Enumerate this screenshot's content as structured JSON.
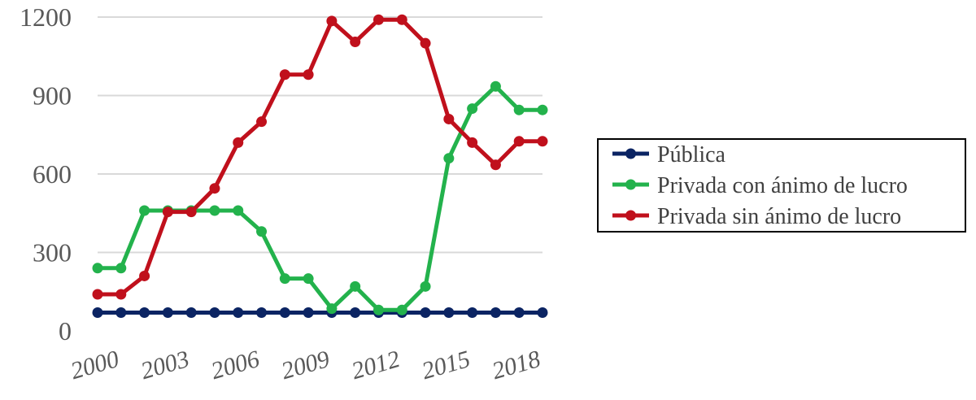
{
  "chart_data": {
    "type": "line",
    "x": [
      2000,
      2001,
      2002,
      2003,
      2004,
      2005,
      2006,
      2007,
      2008,
      2009,
      2010,
      2011,
      2012,
      2013,
      2014,
      2015,
      2016,
      2017,
      2018,
      2019
    ],
    "x_tick_labels": [
      "2000",
      "2003",
      "2006",
      "2009",
      "2012",
      "2015",
      "2018"
    ],
    "y_ticks": [
      0,
      300,
      600,
      900,
      1200
    ],
    "ylim": [
      0,
      1200
    ],
    "grid": "horizontal",
    "legend_position": "right",
    "series": [
      {
        "name": "Pública",
        "color": "#0b2463",
        "values": [
          70,
          70,
          70,
          70,
          70,
          70,
          70,
          70,
          70,
          70,
          70,
          70,
          70,
          70,
          70,
          70,
          70,
          70,
          70,
          70
        ]
      },
      {
        "name": "Privada con ánimo de lucro",
        "color": "#23b24c",
        "values": [
          240,
          240,
          460,
          460,
          460,
          460,
          460,
          380,
          200,
          200,
          85,
          170,
          80,
          80,
          170,
          660,
          850,
          935,
          845,
          845
        ]
      },
      {
        "name": "Privada sin ánimo de lucro",
        "color": "#c0101c",
        "values": [
          140,
          140,
          210,
          455,
          455,
          545,
          720,
          800,
          980,
          980,
          1185,
          1105,
          1190,
          1190,
          1100,
          810,
          720,
          635,
          725,
          725
        ]
      }
    ]
  }
}
